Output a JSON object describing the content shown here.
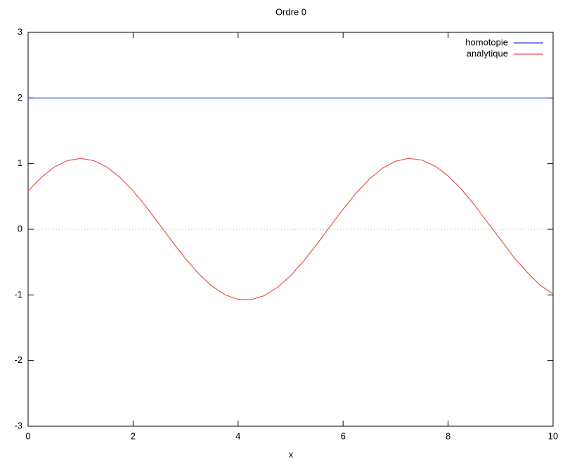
{
  "chart_data": {
    "type": "line",
    "title": "Ordre 0",
    "x_label": "x",
    "x": [
      0,
      0.25,
      0.5,
      0.75,
      1,
      1.25,
      1.5,
      1.75,
      2,
      2.25,
      2.5,
      2.75,
      3,
      3.25,
      3.5,
      3.75,
      4,
      4.25,
      4.5,
      4.75,
      5,
      5.25,
      5.5,
      5.75,
      6,
      6.25,
      6.5,
      6.75,
      7,
      7.25,
      7.5,
      7.75,
      8,
      8.25,
      8.5,
      8.75,
      9,
      9.25,
      9.5,
      9.75,
      10
    ],
    "series": [
      {
        "name": "homotopie",
        "color": "#2a3bd6",
        "values": [
          2,
          2,
          2,
          2,
          2,
          2,
          2,
          2,
          2,
          2,
          2,
          2,
          2,
          2,
          2,
          2,
          2,
          2,
          2,
          2,
          2,
          2,
          2,
          2,
          2,
          2,
          2,
          2,
          2,
          2,
          2,
          2,
          2,
          2,
          2,
          2,
          2,
          2,
          2,
          2,
          2
        ]
      },
      {
        "name": "analytique",
        "color": "#e8544e",
        "values": [
          0.584,
          0.79,
          0.948,
          1.046,
          1.08,
          1.046,
          0.948,
          0.79,
          0.584,
          0.341,
          0.076,
          -0.192,
          -0.449,
          -0.678,
          -0.865,
          -0.998,
          -1.069,
          -1.074,
          -1.011,
          -0.886,
          -0.706,
          -0.482,
          -0.228,
          0.041,
          0.306,
          0.553,
          0.765,
          0.93,
          1.037,
          1.08,
          1.055,
          0.964,
          0.814,
          0.614,
          0.374,
          0.105,
          -0.157,
          -0.424,
          -0.65,
          -0.851,
          -0.984
        ]
      }
    ],
    "xlim": [
      0,
      10
    ],
    "xticks": [
      0,
      2,
      4,
      6,
      8,
      10
    ],
    "ylim": [
      -3,
      3
    ],
    "yticks": [
      -3,
      -2,
      -1,
      0,
      1,
      2,
      3
    ],
    "zero_line": true,
    "legend": "top-right"
  }
}
